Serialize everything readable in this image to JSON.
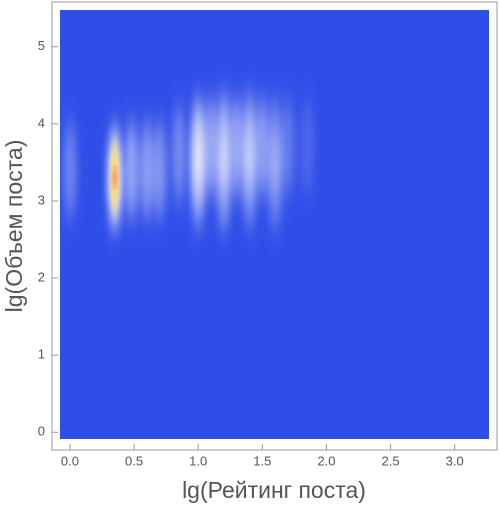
{
  "chart_data": {
    "type": "density",
    "x_label": "lg(Рейтинг поста)",
    "y_label": "lg(Объем поста)",
    "xlim": [
      -0.14,
      3.33
    ],
    "ylim": [
      -0.23,
      5.58
    ],
    "xticks": [
      {
        "value": 0,
        "label": "0.0"
      },
      0.5,
      {
        "value": 1,
        "label": "1.0"
      },
      1.5,
      {
        "value": 2,
        "label": "2.0"
      },
      2.5,
      {
        "value": 3,
        "label": "3.0"
      }
    ],
    "yticks": [
      0,
      1,
      2,
      3,
      4,
      5
    ],
    "background_color": "#2f4ee8",
    "color": "#ffffff",
    "hot_color": "#ffd84a",
    "peak_color": "#e02a2a",
    "x": [
      0,
      0.35,
      0.48,
      0.6,
      0.7,
      0.85,
      1.0,
      1.0,
      1.1,
      1.2,
      1.2,
      1.3,
      1.4,
      1.4,
      1.5,
      1.6,
      1.6,
      1.7,
      1.85
    ],
    "y": [
      3.4,
      3.3,
      3.4,
      3.4,
      3.4,
      3.6,
      3.7,
      3.3,
      3.7,
      3.75,
      3.25,
      3.7,
      3.75,
      3.3,
      3.7,
      3.7,
      3.25,
      3.7,
      3.7
    ],
    "values": [
      30,
      100,
      50,
      45,
      40,
      35,
      70,
      55,
      50,
      60,
      45,
      50,
      55,
      40,
      45,
      35,
      30,
      25,
      15
    ]
  }
}
